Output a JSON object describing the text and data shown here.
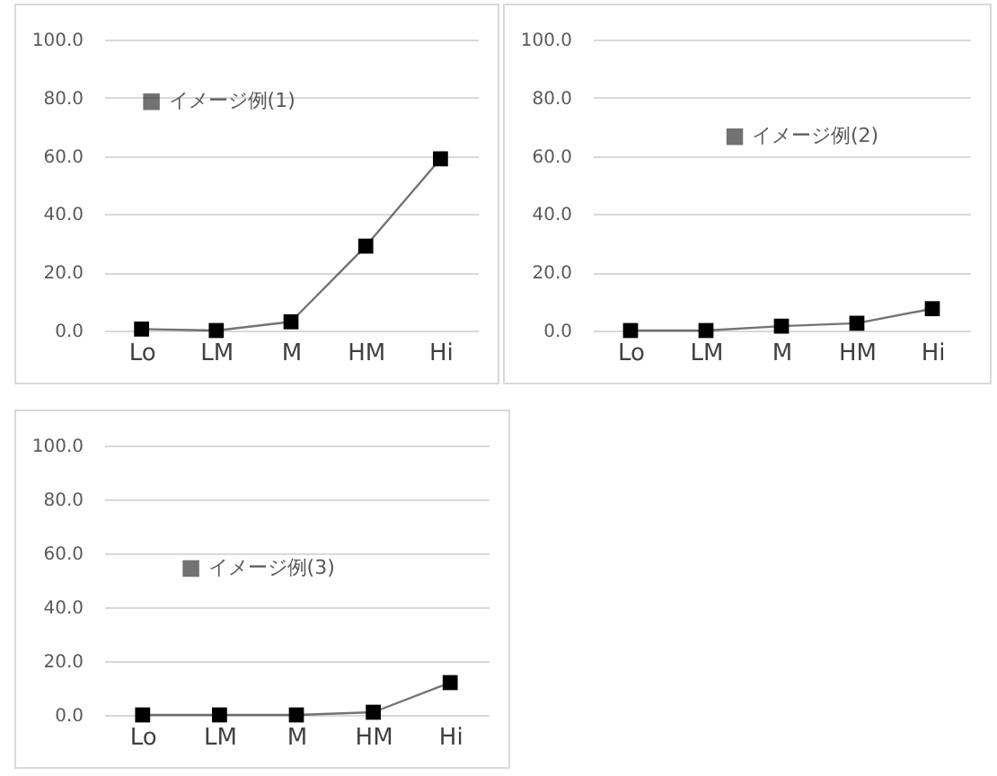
{
  "chart_data": [
    {
      "type": "line",
      "categories": [
        "Lo",
        "LM",
        "M",
        "HM",
        "Hi"
      ],
      "series": [
        {
          "name": "イメージ例(1)",
          "color": "#000000",
          "values": [
            0.5,
            0,
            3,
            29,
            59
          ]
        }
      ],
      "ylim": [
        0,
        100
      ],
      "yticks": [
        {
          "value": 0,
          "label": "0.0"
        },
        {
          "value": 20,
          "label": "20.0"
        },
        {
          "value": 40,
          "label": "40.0"
        },
        {
          "value": 60,
          "label": "60.0"
        },
        {
          "value": 80,
          "label": "80.0"
        },
        {
          "value": 100,
          "label": "100.0"
        }
      ],
      "grid": "y",
      "legend": "top left",
      "marker": "square"
    },
    {
      "type": "line",
      "categories": [
        "Lo",
        "LM",
        "M",
        "HM",
        "Hi"
      ],
      "series": [
        {
          "name": "イメージ例(2)",
          "color": "#000000",
          "values": [
            0,
            0,
            1.5,
            2.5,
            7.5
          ]
        }
      ],
      "ylim": [
        0,
        100
      ],
      "yticks": [
        {
          "value": 0,
          "label": "0.0"
        },
        {
          "value": 20,
          "label": "20.0"
        },
        {
          "value": 40,
          "label": "40.0"
        },
        {
          "value": 60,
          "label": "60.0"
        },
        {
          "value": 80,
          "label": "80.0"
        },
        {
          "value": 100,
          "label": "100.0"
        }
      ],
      "grid": "y",
      "legend": "top",
      "marker": "square"
    },
    {
      "type": "line",
      "categories": [
        "Lo",
        "LM",
        "M",
        "HM",
        "Hi"
      ],
      "series": [
        {
          "name": "イメージ例(3)",
          "color": "#000000",
          "values": [
            0,
            0,
            0,
            1,
            12
          ]
        }
      ],
      "ylim": [
        0,
        100
      ],
      "yticks": [
        {
          "value": 0,
          "label": "0.0"
        },
        {
          "value": 20,
          "label": "20.0"
        },
        {
          "value": 40,
          "label": "40.0"
        },
        {
          "value": 60,
          "label": "60.0"
        },
        {
          "value": 80,
          "label": "80.0"
        },
        {
          "value": 100,
          "label": "100.0"
        }
      ],
      "grid": "y",
      "legend": "left",
      "marker": "square"
    }
  ]
}
